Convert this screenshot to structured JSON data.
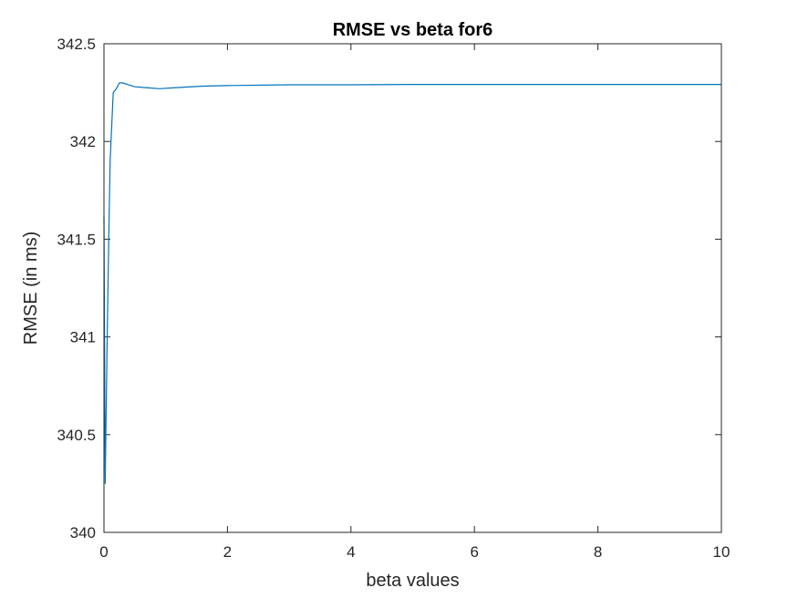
{
  "chart_data": {
    "type": "line",
    "title": "RMSE vs beta for6",
    "xlabel": "beta values",
    "ylabel": "RMSE (in ms)",
    "xlim": [
      0,
      10
    ],
    "ylim": [
      340,
      342.5
    ],
    "xticks": [
      0,
      2,
      4,
      6,
      8,
      10
    ],
    "yticks": [
      340,
      340.5,
      341,
      341.5,
      342,
      342.5
    ],
    "xtick_labels": [
      "0",
      "2",
      "4",
      "6",
      "8",
      "10"
    ],
    "ytick_labels": [
      "340",
      "340.5",
      "341",
      "341.5",
      "342",
      "342.5"
    ],
    "grid": false,
    "box": true,
    "line_color": "#0072BD",
    "axis_color": "#262626",
    "series": [
      {
        "x": [
          0,
          0.02,
          0.05,
          0.08,
          0.1,
          0.15,
          0.2,
          0.25,
          0.3,
          0.4,
          0.5,
          0.7,
          0.9,
          1.2,
          1.6,
          2,
          3,
          4,
          5,
          6,
          7,
          8,
          9,
          10
        ],
        "values": [
          341.62,
          340.25,
          340.95,
          341.55,
          341.9,
          342.25,
          342.27,
          342.3,
          342.3,
          342.29,
          342.28,
          342.275,
          342.27,
          342.276,
          342.283,
          342.286,
          342.29,
          342.29,
          342.292,
          342.292,
          342.292,
          342.292,
          342.292,
          342.292
        ]
      }
    ]
  }
}
